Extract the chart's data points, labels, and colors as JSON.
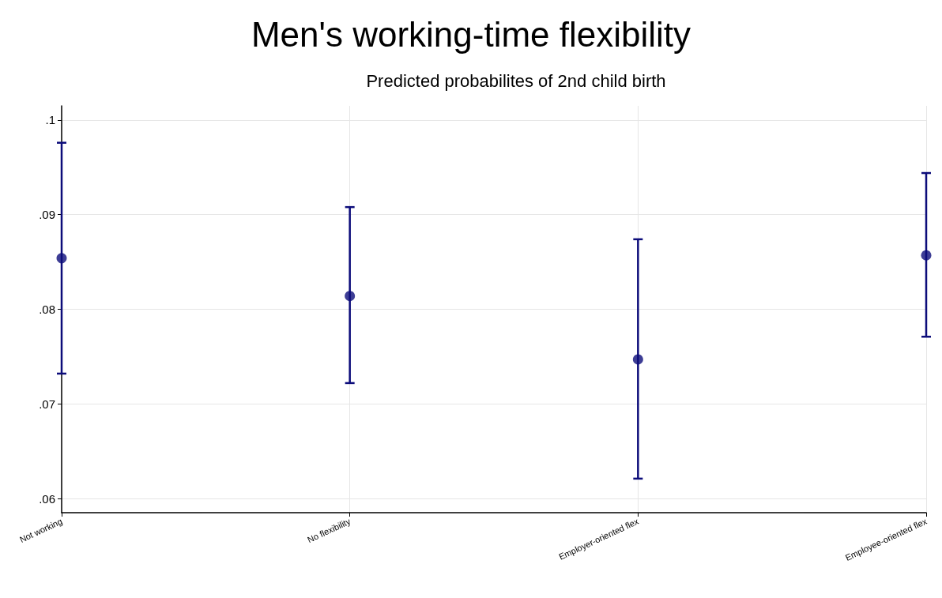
{
  "chart_data": {
    "type": "scatter",
    "title": "Men's working-time flexibility",
    "subtitle": "Predicted probabilites of 2nd child birth",
    "categories": [
      "Not working",
      "No flexibility",
      "Employer-oriented flex",
      "Employee-oriented flex"
    ],
    "values": [
      0.0854,
      0.0814,
      0.0747,
      0.0857
    ],
    "errors": [
      [
        0.0732,
        0.0976
      ],
      [
        0.0722,
        0.0908
      ],
      [
        0.0621,
        0.0874
      ],
      [
        0.0771,
        0.0944
      ]
    ],
    "color": "#0c0c7a",
    "marker": "circle",
    "ylim": [
      0.0585,
      0.1015
    ],
    "yticks": [
      {
        "value": 0.06,
        "label": ".06"
      },
      {
        "value": 0.07,
        "label": ".07"
      },
      {
        "value": 0.08,
        "label": ".08"
      },
      {
        "value": 0.09,
        "label": ".09"
      },
      {
        "value": 0.1,
        "label": ".1"
      }
    ],
    "grid": true
  }
}
